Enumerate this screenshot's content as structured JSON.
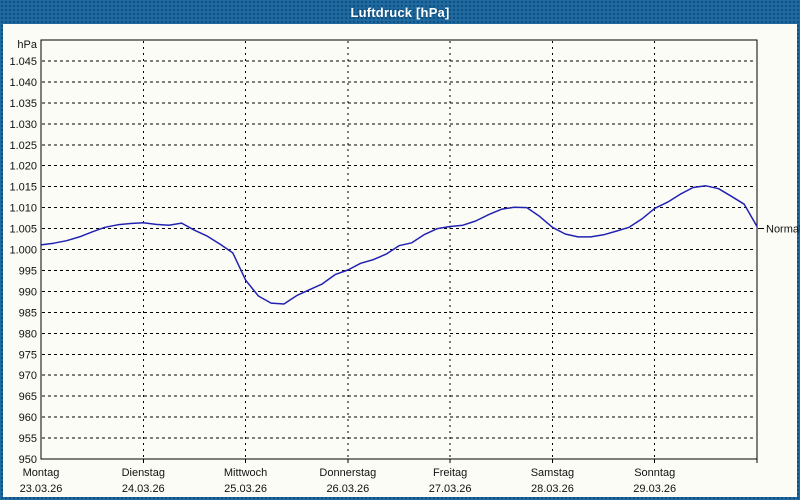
{
  "window": {
    "title": "Luftdruck [hPa]"
  },
  "colors": {
    "titlebar": "#1e6ba1",
    "frame": "#275d93",
    "content_background": "#fcfcf6",
    "plot_border": "#000000",
    "grid": "#000000",
    "line": "#2222b2",
    "label_text": "#111111",
    "title_text": "#ffffff"
  },
  "chart_data": {
    "type": "line",
    "title": "Luftdruck [hPa]",
    "y_unit": "hPa",
    "ylim": [
      950,
      1050
    ],
    "y_tick_step": 5,
    "grid": "dashed",
    "y_tick_labels": [
      "1.045",
      "1.040",
      "1.035",
      "1.030",
      "1.025",
      "1.020",
      "1.015",
      "1.010",
      "1.005",
      "1.000",
      "995",
      "990",
      "985",
      "980",
      "975",
      "970",
      "965",
      "960",
      "955",
      "950"
    ],
    "x_days": [
      {
        "weekday": "Montag",
        "date": "23.03.26"
      },
      {
        "weekday": "Dienstag",
        "date": "24.03.26"
      },
      {
        "weekday": "Mittwoch",
        "date": "25.03.26"
      },
      {
        "weekday": "Donnerstag",
        "date": "26.03.26"
      },
      {
        "weekday": "Freitag",
        "date": "27.03.26"
      },
      {
        "weekday": "Samstag",
        "date": "28.03.26"
      },
      {
        "weekday": "Sonntag",
        "date": "29.03.26"
      }
    ],
    "sample_interval_hours": 3,
    "series": [
      {
        "name": "Luftdruck",
        "color": "#2222b2",
        "values": [
          1001.1,
          1001.5,
          1002.1,
          1003.0,
          1004.2,
          1005.3,
          1005.9,
          1006.2,
          1006.4,
          1006.0,
          1005.8,
          1006.3,
          1004.6,
          1003.2,
          1001.3,
          999.2,
          992.7,
          988.9,
          987.2,
          987.0,
          989.0,
          990.4,
          991.8,
          994.0,
          995.1,
          996.7,
          997.6,
          998.9,
          1000.9,
          1001.6,
          1003.6,
          1005.0,
          1005.5,
          1005.8,
          1006.8,
          1008.3,
          1009.6,
          1010.1,
          1010.0,
          1007.9,
          1005.3,
          1003.7,
          1003.0,
          1003.0,
          1003.5,
          1004.4,
          1005.3,
          1007.3,
          1009.8,
          1011.3,
          1013.2,
          1014.8,
          1015.2,
          1014.5,
          1012.7,
          1010.8,
          1005.5
        ]
      }
    ],
    "annotations": [
      {
        "label": "Normal",
        "value": 1005,
        "position": "right"
      }
    ]
  }
}
